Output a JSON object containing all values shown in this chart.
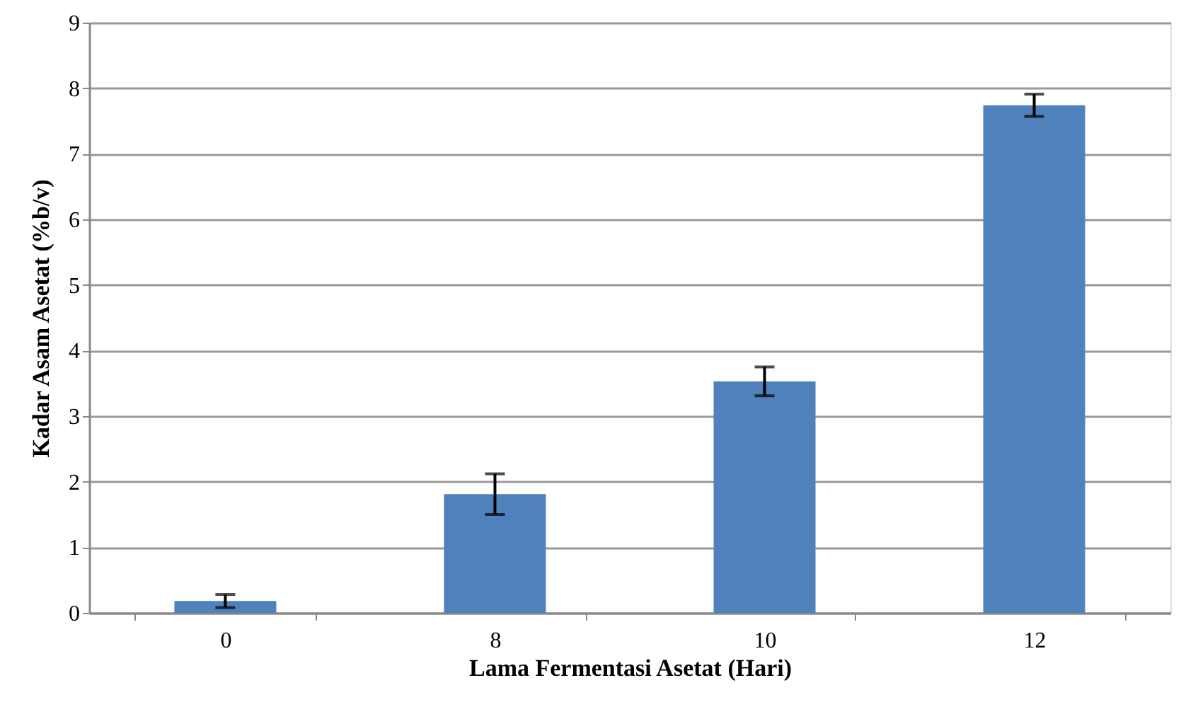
{
  "chart_data": {
    "type": "bar",
    "xlabel": "Lama Fermentasi Asetat (Hari)",
    "ylabel": "Kadar Asam Asetat (%b/v)",
    "categories": [
      "0",
      "8",
      "10",
      "12"
    ],
    "values": [
      0.18,
      1.81,
      3.53,
      7.74
    ],
    "errors": [
      0.1,
      0.31,
      0.22,
      0.17
    ],
    "color": "#4f81bd",
    "ylim": [
      0,
      9
    ],
    "yticks": [
      0,
      1,
      2,
      3,
      4,
      5,
      6,
      7,
      8,
      9
    ],
    "grid": "y"
  }
}
